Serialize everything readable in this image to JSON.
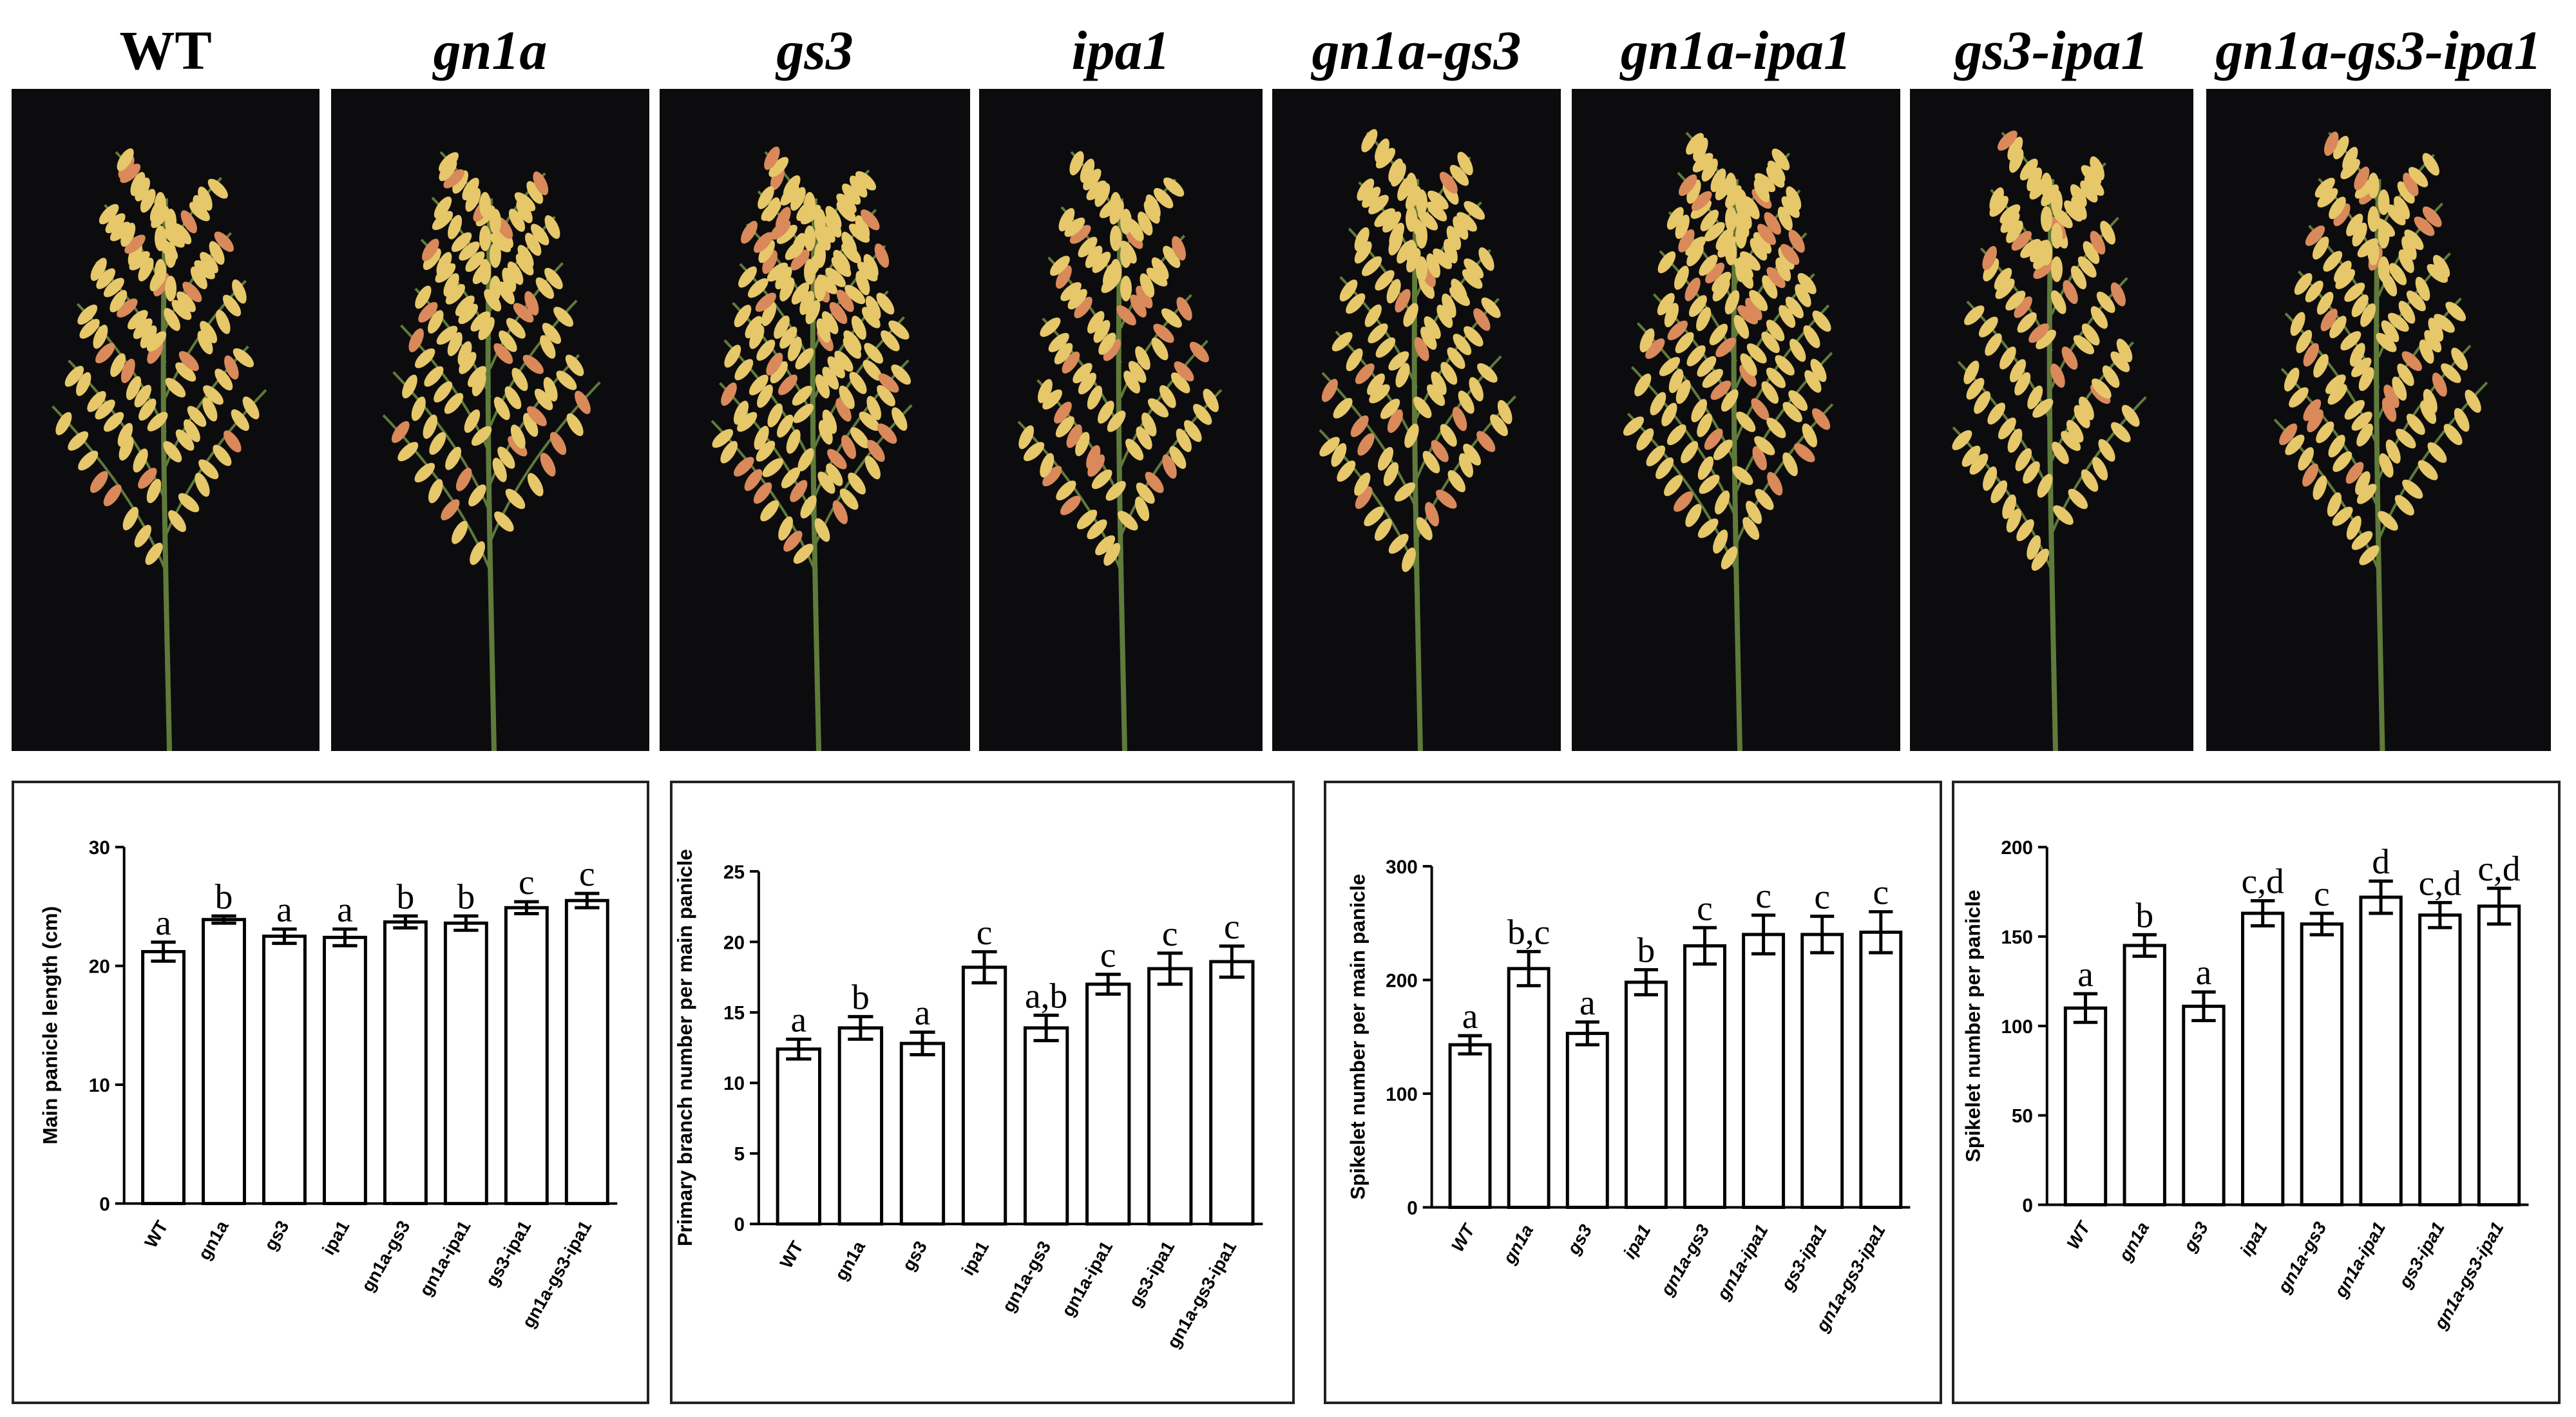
{
  "genotypes": [
    {
      "label": "WT",
      "italic": false
    },
    {
      "label": "gn1a",
      "italic": true
    },
    {
      "label": "gs3",
      "italic": true
    },
    {
      "label": "ipa1",
      "italic": true
    },
    {
      "label": "gn1a-gs3",
      "italic": true
    },
    {
      "label": "gn1a-ipa1",
      "italic": true
    },
    {
      "label": "gs3-ipa1",
      "italic": true
    },
    {
      "label": "gn1a-gs3-ipa1",
      "italic": true
    }
  ],
  "colors": {
    "photo_background": "#0c0c0e",
    "grain": "#e6c76a",
    "grain_tint": "#d9895a",
    "stem": "#5f7a3a"
  },
  "chart_data": [
    {
      "type": "bar",
      "ylabel": "Main panicle length (cm)",
      "categories": [
        "WT",
        "gn1a",
        "gs3",
        "ipa1",
        "gn1a-gs3",
        "gn1a-ipa1",
        "gs3-ipa1",
        "gn1a-gs3-ipa1"
      ],
      "italic_ticks": false,
      "values": [
        21.2,
        23.9,
        22.5,
        22.4,
        23.7,
        23.6,
        24.9,
        25.5
      ],
      "errors": [
        0.8,
        0.3,
        0.6,
        0.7,
        0.5,
        0.6,
        0.5,
        0.6
      ],
      "significance": [
        "a",
        "b",
        "a",
        "a",
        "b",
        "b",
        "c",
        "c"
      ],
      "ylim": [
        0,
        30
      ],
      "yticks": [
        0,
        10,
        20,
        30
      ]
    },
    {
      "type": "bar",
      "ylabel": "Primary branch number per main panicle",
      "categories": [
        "WT",
        "gn1a",
        "gs3",
        "ipa1",
        "gn1a-gs3",
        "gn1a-ipa1",
        "gs3-ipa1",
        "gn1a-gs3-ipa1"
      ],
      "italic_ticks": false,
      "values": [
        12.4,
        13.9,
        12.8,
        18.2,
        13.9,
        17.0,
        18.1,
        18.6
      ],
      "errors": [
        0.7,
        0.8,
        0.8,
        1.1,
        0.9,
        0.7,
        1.1,
        1.1
      ],
      "significance": [
        "a",
        "b",
        "a",
        "c",
        "a,b",
        "c",
        "c",
        "c"
      ],
      "ylim": [
        0,
        25
      ],
      "yticks": [
        0,
        5,
        10,
        15,
        20,
        25
      ]
    },
    {
      "type": "bar",
      "ylabel": "Spikelet number per main panicle",
      "categories": [
        "WT",
        "gn1a",
        "gs3",
        "ipa1",
        "gn1a-gs3",
        "gn1a-ipa1",
        "gs3-ipa1",
        "gn1a-gs3-ipa1"
      ],
      "italic_ticks": true,
      "values": [
        143,
        210,
        153,
        198,
        230,
        240,
        240,
        242
      ],
      "errors": [
        8,
        15,
        10,
        11,
        16,
        17,
        16,
        18
      ],
      "significance": [
        "a",
        "b,c",
        "a",
        "b",
        "c",
        "c",
        "c",
        "c"
      ],
      "ylim": [
        0,
        300
      ],
      "yticks": [
        0,
        100,
        200,
        300
      ]
    },
    {
      "type": "bar",
      "ylabel": "Spikelet number per panicle",
      "categories": [
        "WT",
        "gn1a",
        "gs3",
        "ipa1",
        "gn1a-gs3",
        "gn1a-ipa1",
        "gs3-ipa1",
        "gn1a-gs3-ipa1"
      ],
      "italic_ticks": true,
      "values": [
        110,
        145,
        111,
        163,
        157,
        172,
        162,
        167
      ],
      "errors": [
        8,
        6,
        8,
        7,
        6,
        9,
        7,
        10
      ],
      "significance": [
        "a",
        "b",
        "a",
        "c,d",
        "c",
        "d",
        "c,d",
        "c,d"
      ],
      "ylim": [
        0,
        200
      ],
      "yticks": [
        0,
        50,
        100,
        150,
        200
      ]
    }
  ]
}
